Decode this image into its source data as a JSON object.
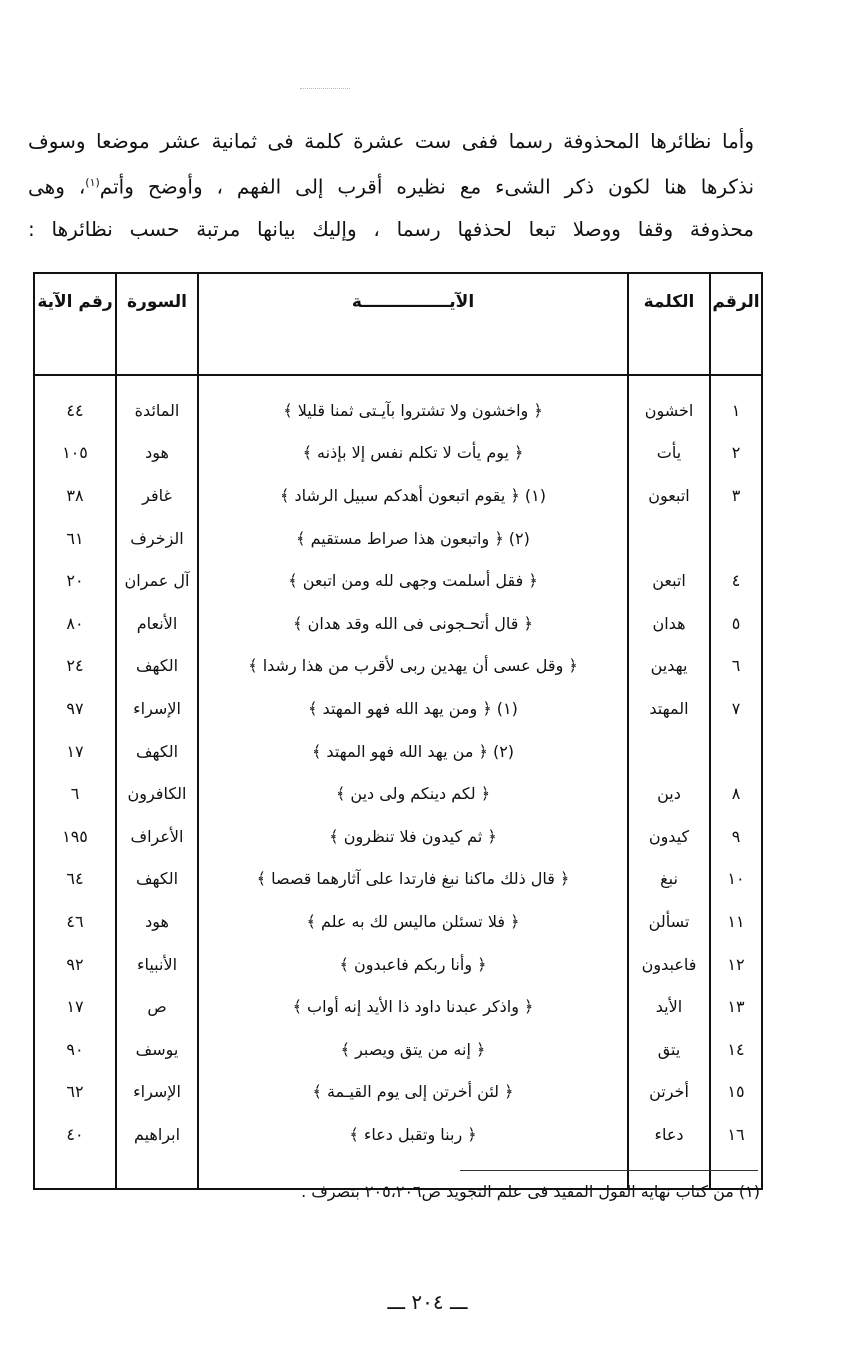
{
  "intro": {
    "lines": [
      "وأما نظائرها المحذوفة رسما ففى ست عشرة كلمة فى ثمانية عشر موضعا وسوف",
      "نذكرها هنا لكون ذكر الشىء مع نظيره أقرب إلى الفهم ، وأوضح وأتم",
      "محذوفة وقفا ووصلا تبعا لحذفها رسما ، وإليك بيانها مرتبة حسب نظائرها :"
    ],
    "footnote_marker": "(١)",
    "line2_tail": "، وهى"
  },
  "table": {
    "headers": {
      "no": "الرقم",
      "word": "الكلمة",
      "ayah": "الآيـــــــــــــــة",
      "surah": "السورة",
      "ayah_num": "رقم الآية"
    },
    "rows": [
      {
        "no": "١",
        "word": "اخشون",
        "ayah": "﴿ واخشون ولا تشتروا بآيـتى ثمنا قليلا ﴾",
        "surah": "المائدة",
        "ayah_num": "٤٤"
      },
      {
        "no": "٢",
        "word": "يأت",
        "ayah": "﴿ يوم يأت لا تكلم نفس إلا بإذنه ﴾",
        "surah": "هود",
        "ayah_num": "١٠٥"
      },
      {
        "no": "٣",
        "word": "اتبعون",
        "ayah": "(١) ﴿ يقوم اتبعون أهدكم سبيل الرشاد ﴾",
        "surah": "غافر",
        "ayah_num": "٣٨"
      },
      {
        "no": "",
        "word": "",
        "ayah": "(٢) ﴿ واتبعون هذا صراط مستقيم ﴾",
        "surah": "الزخرف",
        "ayah_num": "٦١"
      },
      {
        "no": "٤",
        "word": "اتبعن",
        "ayah": "﴿ فقل أسلمت وجهى لله ومن اتبعن ﴾",
        "surah": "آل عمران",
        "ayah_num": "٢٠"
      },
      {
        "no": "٥",
        "word": "هدان",
        "ayah": "﴿ قال أتحـجونى فى الله وقد هدان ﴾",
        "surah": "الأنعام",
        "ayah_num": "٨٠"
      },
      {
        "no": "٦",
        "word": "يهدين",
        "ayah": "﴿ وقل عسى أن يهدين ربى لأقرب من هذا رشدا ﴾",
        "surah": "الكهف",
        "ayah_num": "٢٤"
      },
      {
        "no": "٧",
        "word": "المهتد",
        "ayah": "(١) ﴿ ومن يهد الله فهو المهتد ﴾",
        "surah": "الإسراء",
        "ayah_num": "٩٧"
      },
      {
        "no": "",
        "word": "",
        "ayah": "(٢) ﴿ من يهد الله فهو المهتد ﴾",
        "surah": "الكهف",
        "ayah_num": "١٧"
      },
      {
        "no": "٨",
        "word": "دين",
        "ayah": "﴿ لكم دينكم ولى دين ﴾",
        "surah": "الكافرون",
        "ayah_num": "٦"
      },
      {
        "no": "٩",
        "word": "كيدون",
        "ayah": "﴿ ثم كيدون فلا تنظرون ﴾",
        "surah": "الأعراف",
        "ayah_num": "١٩٥"
      },
      {
        "no": "١٠",
        "word": "نبغ",
        "ayah": "﴿ قال ذلك ماكنا نبغ فارتدا على آثارهما قصصا ﴾",
        "surah": "الكهف",
        "ayah_num": "٦٤"
      },
      {
        "no": "١١",
        "word": "تسألن",
        "ayah": "﴿ فلا تسئلن ماليس لك به علم ﴾",
        "surah": "هود",
        "ayah_num": "٤٦"
      },
      {
        "no": "١٢",
        "word": "فاعبدون",
        "ayah": "﴿ وأنا ربكم فاعبدون ﴾",
        "surah": "الأنبياء",
        "ayah_num": "٩٢"
      },
      {
        "no": "١٣",
        "word": "الأيد",
        "ayah": "﴿ واذكر عبدنا داود ذا الأيد إنه أواب ﴾",
        "surah": "ص",
        "ayah_num": "١٧"
      },
      {
        "no": "١٤",
        "word": "يتق",
        "ayah": "﴿ إنه من يتق ويصبر ﴾",
        "surah": "يوسف",
        "ayah_num": "٩٠"
      },
      {
        "no": "١٥",
        "word": "أخرتن",
        "ayah": "﴿ لئن أخرتن إلى يوم القيـمة ﴾",
        "surah": "الإسراء",
        "ayah_num": "٦٢"
      },
      {
        "no": "١٦",
        "word": "دعاء",
        "ayah": "﴿ ربنا وتقبل دعاء ﴾",
        "surah": "ابراهيم",
        "ayah_num": "٤٠"
      }
    ]
  },
  "footnote": "(١) من كتاب نهاية القول المفيد فى علم التجويد ص٢٠٥،٢٠٦ بتصرف .",
  "page_number": "ـــ ٢٠٤ ـــ"
}
